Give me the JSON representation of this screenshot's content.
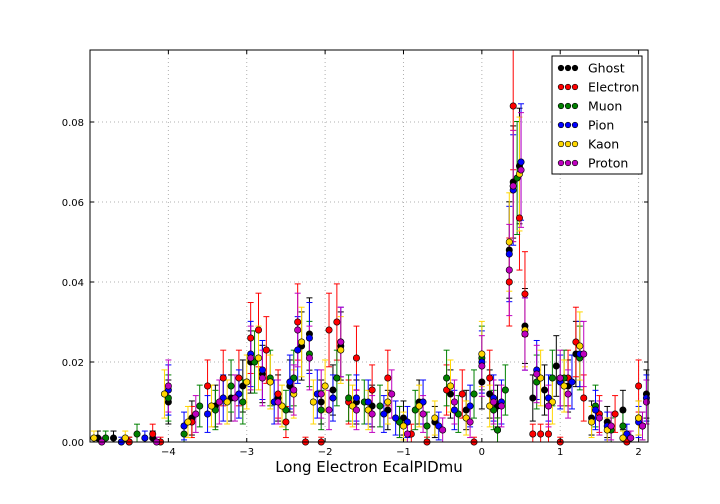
{
  "chart_data": {
    "type": "scatter",
    "title": "",
    "xlabel": "Long Electron EcalPIDmu",
    "ylabel": "",
    "xlim": [
      -5.0,
      2.12
    ],
    "ylim": [
      0.0,
      0.098
    ],
    "x_ticks": [
      -4,
      -3,
      -2,
      -1,
      0,
      1,
      2
    ],
    "x_tick_labels": [
      "−4",
      "−3",
      "−2",
      "−1",
      "0",
      "1",
      "2"
    ],
    "y_ticks": [
      0.0,
      0.02,
      0.04,
      0.06,
      0.08
    ],
    "y_tick_labels": [
      "0.00",
      "0.02",
      "0.04",
      "0.06",
      "0.08"
    ],
    "grid": true,
    "legend_position": "top-right",
    "series": [
      {
        "name": "Ghost",
        "color": "#000000",
        "points": [
          [
            -4.9,
            0.001
          ],
          [
            -4.7,
            0.001
          ],
          [
            -4.5,
            0.0
          ],
          [
            -4.2,
            0.001
          ],
          [
            -4.0,
            0.01
          ],
          [
            -3.7,
            0.006
          ],
          [
            -3.4,
            0.009
          ],
          [
            -3.2,
            0.011
          ],
          [
            -3.05,
            0.014
          ],
          [
            -2.95,
            0.02
          ],
          [
            -2.8,
            0.017
          ],
          [
            -2.6,
            0.011
          ],
          [
            -2.45,
            0.014
          ],
          [
            -2.3,
            0.024
          ],
          [
            -2.2,
            0.027
          ],
          [
            -2.05,
            0.01
          ],
          [
            -1.9,
            0.013
          ],
          [
            -1.8,
            0.024
          ],
          [
            -1.6,
            0.01
          ],
          [
            -1.4,
            0.009
          ],
          [
            -1.2,
            0.008
          ],
          [
            -1.0,
            0.006
          ],
          [
            -0.8,
            0.01
          ],
          [
            -0.6,
            0.005
          ],
          [
            -0.4,
            0.012
          ],
          [
            -0.2,
            0.008
          ],
          [
            0.0,
            0.015
          ],
          [
            0.1,
            0.012
          ],
          [
            0.2,
            0.009
          ],
          [
            0.35,
            0.048
          ],
          [
            0.4,
            0.065
          ],
          [
            0.48,
            0.069
          ],
          [
            0.55,
            0.029
          ],
          [
            0.65,
            0.011
          ],
          [
            0.8,
            0.013
          ],
          [
            0.95,
            0.019
          ],
          [
            1.1,
            0.014
          ],
          [
            1.2,
            0.022
          ],
          [
            1.4,
            0.006
          ],
          [
            1.6,
            0.005
          ],
          [
            1.8,
            0.008
          ],
          [
            2.0,
            0.006
          ],
          [
            2.1,
            0.012
          ]
        ]
      },
      {
        "name": "Electron",
        "color": "#ff0000",
        "points": [
          [
            -4.5,
            0.0
          ],
          [
            -4.2,
            0.002
          ],
          [
            -4.1,
            0.0
          ],
          [
            -3.7,
            0.005
          ],
          [
            -3.5,
            0.014
          ],
          [
            -3.3,
            0.016
          ],
          [
            -3.1,
            0.016
          ],
          [
            -2.95,
            0.026
          ],
          [
            -2.85,
            0.028
          ],
          [
            -2.75,
            0.023
          ],
          [
            -2.6,
            0.012
          ],
          [
            -2.5,
            0.005
          ],
          [
            -2.35,
            0.03
          ],
          [
            -2.25,
            0.0
          ],
          [
            -2.05,
            0.0
          ],
          [
            -1.95,
            0.028
          ],
          [
            -1.85,
            0.03
          ],
          [
            -1.7,
            0.01
          ],
          [
            -1.6,
            0.021
          ],
          [
            -1.4,
            0.013
          ],
          [
            -1.2,
            0.016
          ],
          [
            -1.05,
            0.005
          ],
          [
            -0.9,
            0.002
          ],
          [
            -0.7,
            0.0
          ],
          [
            -0.45,
            0.013
          ],
          [
            -0.25,
            0.012
          ],
          [
            -0.1,
            0.0
          ],
          [
            0.1,
            0.016
          ],
          [
            0.2,
            0.003
          ],
          [
            0.35,
            0.04
          ],
          [
            0.4,
            0.084
          ],
          [
            0.48,
            0.056
          ],
          [
            0.55,
            0.037
          ],
          [
            0.65,
            0.002
          ],
          [
            0.75,
            0.002
          ],
          [
            0.85,
            0.002
          ],
          [
            1.0,
            0.0
          ],
          [
            1.1,
            0.016
          ],
          [
            1.2,
            0.025
          ],
          [
            1.3,
            0.011
          ],
          [
            1.5,
            0.007
          ],
          [
            1.7,
            0.007
          ],
          [
            1.85,
            0.0
          ],
          [
            2.0,
            0.014
          ]
        ]
      },
      {
        "name": "Muon",
        "color": "#008000",
        "points": [
          [
            -4.8,
            0.001
          ],
          [
            -4.4,
            0.002
          ],
          [
            -4.0,
            0.011
          ],
          [
            -3.8,
            0.002
          ],
          [
            -3.6,
            0.009
          ],
          [
            -3.4,
            0.008
          ],
          [
            -3.2,
            0.014
          ],
          [
            -3.05,
            0.01
          ],
          [
            -2.9,
            0.02
          ],
          [
            -2.7,
            0.016
          ],
          [
            -2.5,
            0.008
          ],
          [
            -2.4,
            0.016
          ],
          [
            -2.2,
            0.022
          ],
          [
            -2.05,
            0.008
          ],
          [
            -1.85,
            0.016
          ],
          [
            -1.7,
            0.011
          ],
          [
            -1.5,
            0.01
          ],
          [
            -1.3,
            0.009
          ],
          [
            -1.05,
            0.005
          ],
          [
            -0.85,
            0.008
          ],
          [
            -0.7,
            0.004
          ],
          [
            -0.45,
            0.016
          ],
          [
            -0.3,
            0.007
          ],
          [
            -0.1,
            0.012
          ],
          [
            0.0,
            0.021
          ],
          [
            0.15,
            0.008
          ],
          [
            0.2,
            0.003
          ],
          [
            0.3,
            0.013
          ],
          [
            0.45,
            0.066
          ],
          [
            0.7,
            0.015
          ],
          [
            0.9,
            0.016
          ],
          [
            1.05,
            0.016
          ],
          [
            1.25,
            0.021
          ],
          [
            1.45,
            0.009
          ],
          [
            1.65,
            0.003
          ],
          [
            1.8,
            0.004
          ],
          [
            2.05,
            0.004
          ]
        ]
      },
      {
        "name": "Pion",
        "color": "#0000ff",
        "points": [
          [
            -4.6,
            0.0
          ],
          [
            -4.3,
            0.001
          ],
          [
            -4.0,
            0.013
          ],
          [
            -3.8,
            0.004
          ],
          [
            -3.5,
            0.007
          ],
          [
            -3.3,
            0.011
          ],
          [
            -3.1,
            0.012
          ],
          [
            -2.95,
            0.022
          ],
          [
            -2.8,
            0.018
          ],
          [
            -2.65,
            0.01
          ],
          [
            -2.45,
            0.015
          ],
          [
            -2.35,
            0.023
          ],
          [
            -2.2,
            0.026
          ],
          [
            -2.1,
            0.012
          ],
          [
            -1.9,
            0.011
          ],
          [
            -1.8,
            0.025
          ],
          [
            -1.6,
            0.011
          ],
          [
            -1.45,
            0.01
          ],
          [
            -1.25,
            0.007
          ],
          [
            -1.1,
            0.006
          ],
          [
            -0.95,
            0.005
          ],
          [
            -0.75,
            0.01
          ],
          [
            -0.55,
            0.004
          ],
          [
            -0.35,
            0.008
          ],
          [
            -0.15,
            0.009
          ],
          [
            0.0,
            0.02
          ],
          [
            0.15,
            0.011
          ],
          [
            0.25,
            0.01
          ],
          [
            0.35,
            0.047
          ],
          [
            0.4,
            0.063
          ],
          [
            0.5,
            0.07
          ],
          [
            0.55,
            0.027
          ],
          [
            0.7,
            0.018
          ],
          [
            0.85,
            0.011
          ],
          [
            1.0,
            0.015
          ],
          [
            1.15,
            0.015
          ],
          [
            1.25,
            0.022
          ],
          [
            1.45,
            0.008
          ],
          [
            1.6,
            0.004
          ],
          [
            1.85,
            0.002
          ],
          [
            2.0,
            0.005
          ],
          [
            2.1,
            0.011
          ]
        ]
      },
      {
        "name": "Kaon",
        "color": "#ffd700",
        "points": [
          [
            -4.95,
            0.001
          ],
          [
            -4.55,
            0.001
          ],
          [
            -4.05,
            0.012
          ],
          [
            -3.75,
            0.005
          ],
          [
            -3.45,
            0.009
          ],
          [
            -3.25,
            0.01
          ],
          [
            -3.0,
            0.015
          ],
          [
            -2.85,
            0.021
          ],
          [
            -2.7,
            0.015
          ],
          [
            -2.55,
            0.009
          ],
          [
            -2.4,
            0.012
          ],
          [
            -2.3,
            0.025
          ],
          [
            -2.15,
            0.01
          ],
          [
            -2.0,
            0.014
          ],
          [
            -1.8,
            0.023
          ],
          [
            -1.65,
            0.009
          ],
          [
            -1.45,
            0.008
          ],
          [
            -1.2,
            0.01
          ],
          [
            -1.0,
            0.004
          ],
          [
            -0.8,
            0.009
          ],
          [
            -0.6,
            0.006
          ],
          [
            -0.4,
            0.014
          ],
          [
            -0.2,
            0.006
          ],
          [
            0.0,
            0.022
          ],
          [
            0.1,
            0.009
          ],
          [
            0.35,
            0.05
          ],
          [
            0.4,
            0.064
          ],
          [
            0.48,
            0.067
          ],
          [
            0.55,
            0.028
          ],
          [
            0.75,
            0.016
          ],
          [
            0.9,
            0.01
          ],
          [
            1.05,
            0.014
          ],
          [
            1.25,
            0.024
          ],
          [
            1.4,
            0.005
          ],
          [
            1.6,
            0.003
          ],
          [
            1.8,
            0.001
          ],
          [
            2.0,
            0.006
          ]
        ]
      },
      {
        "name": "Proton",
        "color": "#bf00bf",
        "points": [
          [
            -4.85,
            0.0
          ],
          [
            -4.15,
            0.0
          ],
          [
            -4.0,
            0.014
          ],
          [
            -3.65,
            0.007
          ],
          [
            -3.35,
            0.01
          ],
          [
            -3.15,
            0.011
          ],
          [
            -2.95,
            0.021
          ],
          [
            -2.8,
            0.016
          ],
          [
            -2.6,
            0.01
          ],
          [
            -2.4,
            0.013
          ],
          [
            -2.35,
            0.028
          ],
          [
            -2.2,
            0.021
          ],
          [
            -2.05,
            0.012
          ],
          [
            -1.95,
            0.008
          ],
          [
            -1.8,
            0.025
          ],
          [
            -1.6,
            0.008
          ],
          [
            -1.4,
            0.007
          ],
          [
            -1.15,
            0.012
          ],
          [
            -0.95,
            0.002
          ],
          [
            -0.75,
            0.007
          ],
          [
            -0.5,
            0.003
          ],
          [
            -0.35,
            0.01
          ],
          [
            -0.15,
            0.005
          ],
          [
            0.0,
            0.019
          ],
          [
            0.15,
            0.01
          ],
          [
            0.25,
            0.009
          ],
          [
            0.35,
            0.043
          ],
          [
            0.4,
            0.064
          ],
          [
            0.5,
            0.068
          ],
          [
            0.55,
            0.027
          ],
          [
            0.7,
            0.017
          ],
          [
            0.85,
            0.009
          ],
          [
            1.0,
            0.016
          ],
          [
            1.1,
            0.012
          ],
          [
            1.3,
            0.022
          ],
          [
            1.5,
            0.006
          ],
          [
            1.65,
            0.004
          ],
          [
            1.9,
            0.001
          ],
          [
            2.05,
            0.004
          ],
          [
            2.1,
            0.01
          ]
        ]
      }
    ]
  }
}
